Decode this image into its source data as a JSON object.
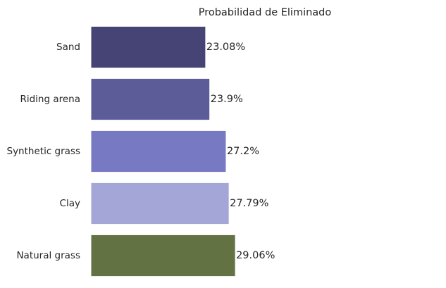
{
  "chart_data": {
    "type": "bar",
    "orientation": "horizontal",
    "title": "Probabilidad de Eliminado",
    "xlabel": "",
    "ylabel": "",
    "categories": [
      "Sand",
      "Riding arena",
      "Synthetic grass",
      "Clay",
      "Natural grass"
    ],
    "values": [
      23.08,
      23.9,
      27.2,
      27.79,
      29.06
    ],
    "value_labels": [
      "23.08%",
      "23.9%",
      "27.2%",
      "27.79%",
      "29.06%"
    ],
    "xlim": [
      0,
      70
    ],
    "grid": false,
    "legend": "none",
    "colors": [
      "#454475",
      "#5b5c98",
      "#7779c3",
      "#a3a6d6",
      "#627243"
    ]
  }
}
